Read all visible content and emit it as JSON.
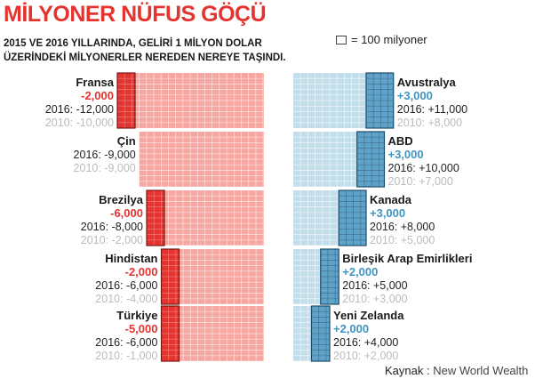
{
  "title": "MİLYONER NÜFUS GÖÇÜ",
  "subtitle_line1": "2015 VE 2016 YILLARINDA, GELİRİ 1 MİLYON DOLAR",
  "subtitle_line2": "ÜZERİNDEKİ MİLYONERLER NEREDEN NEREYE TAŞINDI.",
  "legend": {
    "unit_label": "= 100 milyoner"
  },
  "source": {
    "label": "Kaynak :",
    "value": "New World Wealth"
  },
  "colors": {
    "out_dark": "#e3342f",
    "out_light": "#f7a7a1",
    "in_dark": "#5fa3c8",
    "in_light": "#c3deeb",
    "in_text": "#3f95c2",
    "out_text": "#e3342f"
  },
  "chart_data": {
    "type": "bar",
    "unit_per_cell": 100,
    "outflow": [
      {
        "country": "Fransa",
        "change": "-2,000",
        "line2016": "2016: -12,000",
        "line2010": "2010: -10,000",
        "change_value": -2000,
        "value_2016": -12000,
        "value_2010": -10000
      },
      {
        "country": "Çin",
        "change": "",
        "line2016": "2016: -9,000",
        "line2010": "2010: -9,000",
        "change_value": 0,
        "value_2016": -9000,
        "value_2010": -9000
      },
      {
        "country": "Brezilya",
        "change": "-6,000",
        "line2016": "2016: -8,000",
        "line2010": "2010: -2,000",
        "change_value": -6000,
        "value_2016": -8000,
        "value_2010": -2000
      },
      {
        "country": "Hindistan",
        "change": "-2,000",
        "line2016": "2016: -6,000",
        "line2010": "2010: -4,000",
        "change_value": -2000,
        "value_2016": -6000,
        "value_2010": -4000
      },
      {
        "country": "Türkiye",
        "change": "-5,000",
        "line2016": "2016: -6,000",
        "line2010": "2010: -1,000",
        "change_value": -5000,
        "value_2016": -6000,
        "value_2010": -1000
      }
    ],
    "inflow": [
      {
        "country": "Avustralya",
        "change": "+3,000",
        "line2016": "2016: +11,000",
        "line2010": "2010: +8,000",
        "change_value": 3000,
        "value_2016": 11000,
        "value_2010": 8000
      },
      {
        "country": "ABD",
        "change": "+3,000",
        "line2016": "2016: +10,000",
        "line2010": "2010: +7,000",
        "change_value": 3000,
        "value_2016": 10000,
        "value_2010": 7000
      },
      {
        "country": "Kanada",
        "change": "+3,000",
        "line2016": "2016: +8,000",
        "line2010": "2010: +5,000",
        "change_value": 3000,
        "value_2016": 8000,
        "value_2010": 5000
      },
      {
        "country": "Birleşik Arap Emirlikleri",
        "change": "+2,000",
        "line2016": "2016: +5,000",
        "line2010": "2010: +3,000",
        "change_value": 2000,
        "value_2016": 5000,
        "value_2010": 3000
      },
      {
        "country": "Yeni Zelanda",
        "change": "+2,000",
        "line2016": "2016: +4,000",
        "line2010": "2010: +2,000",
        "change_value": 2000,
        "value_2016": 4000,
        "value_2010": 2000
      }
    ]
  }
}
